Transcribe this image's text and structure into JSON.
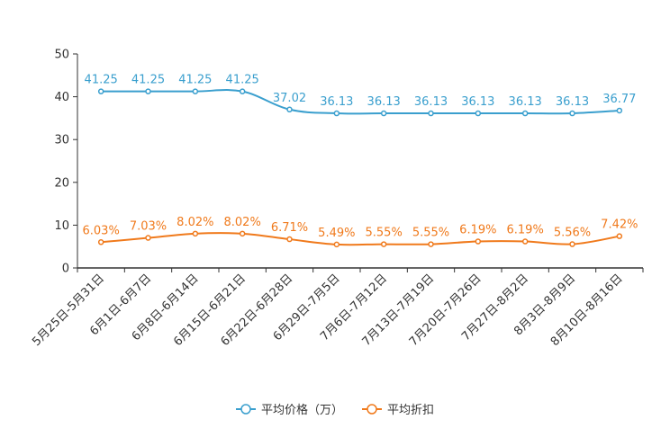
{
  "chart_data": {
    "type": "line",
    "categories": [
      "5月25日-5月31日",
      "6月1日-6月7日",
      "6月8日-6月14日",
      "6月15日-6月21日",
      "6月22日-6月28日",
      "6月29日-7月5日",
      "7月6日-7月12日",
      "7月13日-7月19日",
      "7月20日-7月26日",
      "7月27日-8月2日",
      "8月3日-8月9日",
      "8月10日-8月16日"
    ],
    "series": [
      {
        "name": "平均价格（万）",
        "color": "#3a9fce",
        "values": [
          41.25,
          41.25,
          41.25,
          41.25,
          37.02,
          36.13,
          36.13,
          36.13,
          36.13,
          36.13,
          36.13,
          36.77
        ],
        "labels": [
          "41.25",
          "41.25",
          "41.25",
          "41.25",
          "37.02",
          "36.13",
          "36.13",
          "36.13",
          "36.13",
          "36.13",
          "36.13",
          "36.77"
        ]
      },
      {
        "name": "平均折扣",
        "color": "#f07a1c",
        "values": [
          6.03,
          7.03,
          8.02,
          8.02,
          6.71,
          5.49,
          5.55,
          5.55,
          6.19,
          6.19,
          5.56,
          7.42
        ],
        "labels": [
          "6.03%",
          "7.03%",
          "8.02%",
          "8.02%",
          "6.71%",
          "5.49%",
          "5.55%",
          "5.55%",
          "6.19%",
          "6.19%",
          "5.56%",
          "7.42%"
        ]
      }
    ],
    "y_ticks": [
      "0",
      "10",
      "20",
      "30",
      "40",
      "50"
    ],
    "ylim": [
      0,
      50
    ],
    "title": "",
    "xlabel": "",
    "ylabel": "",
    "grid": false,
    "legend_position": "bottom-center"
  }
}
